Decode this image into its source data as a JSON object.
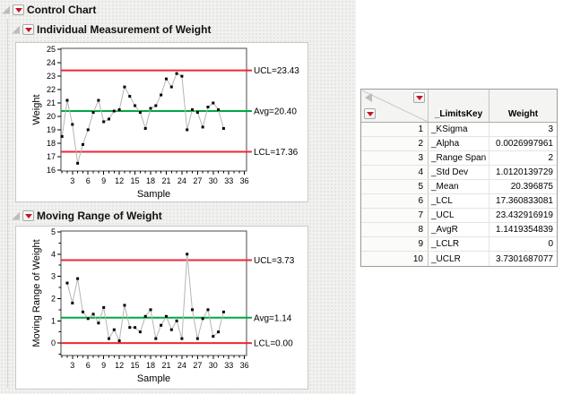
{
  "outline": {
    "control_chart_title": "Control Chart",
    "individual_chart_title": "Individual Measurement of Weight",
    "moving_range_chart_title": "Moving Range of Weight"
  },
  "chart_data": [
    {
      "type": "line",
      "title": "Individual Measurement of Weight",
      "xlabel": "Sample",
      "ylabel": "Weight",
      "xlim": [
        0.8,
        36.4
      ],
      "ylim": [
        15.92,
        25.08
      ],
      "xticks": [
        3,
        6,
        9,
        12,
        15,
        18,
        21,
        24,
        27,
        30,
        33,
        36
      ],
      "x_minor_step": 1,
      "yticks": [
        16,
        17,
        18,
        19,
        20,
        21,
        22,
        23,
        24,
        25
      ],
      "grid": false,
      "legend": "none",
      "x": [
        1,
        2,
        3,
        4,
        5,
        6,
        7,
        8,
        9,
        10,
        11,
        12,
        13,
        14,
        15,
        16,
        17,
        18,
        19,
        20,
        21,
        22,
        23,
        24,
        25,
        26,
        27,
        28,
        29,
        30,
        31,
        32
      ],
      "values": [
        18.5,
        21.2,
        19.4,
        16.5,
        17.9,
        19.0,
        20.3,
        21.2,
        19.6,
        19.8,
        20.4,
        20.5,
        22.2,
        21.5,
        20.8,
        20.3,
        19.1,
        20.6,
        20.8,
        21.6,
        22.8,
        22.2,
        23.2,
        23.0,
        19.0,
        20.5,
        20.3,
        19.2,
        20.7,
        21.0,
        20.5,
        19.1
      ],
      "control_lines": [
        {
          "label": "UCL=23.43",
          "value": 23.432916919,
          "kind": "limit"
        },
        {
          "label": "Avg=20.40",
          "value": 20.396875,
          "kind": "center"
        },
        {
          "label": "LCL=17.36",
          "value": 17.360833081,
          "kind": "limit"
        }
      ]
    },
    {
      "type": "line",
      "title": "Moving Range of Weight",
      "xlabel": "Sample",
      "ylabel": "Moving Range of Weight",
      "xlim": [
        0.8,
        36.4
      ],
      "ylim": [
        -0.56,
        5.04
      ],
      "xticks": [
        3,
        6,
        9,
        12,
        15,
        18,
        21,
        24,
        27,
        30,
        33,
        36
      ],
      "x_minor_step": 1,
      "yticks": [
        0,
        1,
        2,
        3,
        4,
        5
      ],
      "y_minor_step": 0.5,
      "grid": false,
      "legend": "none",
      "x": [
        2,
        3,
        4,
        5,
        6,
        7,
        8,
        9,
        10,
        11,
        12,
        13,
        14,
        15,
        16,
        17,
        18,
        19,
        20,
        21,
        22,
        23,
        24,
        25,
        26,
        27,
        28,
        29,
        30,
        31,
        32
      ],
      "values": [
        2.7,
        1.8,
        2.9,
        1.4,
        1.1,
        1.3,
        0.9,
        1.6,
        0.2,
        0.6,
        0.1,
        1.7,
        0.7,
        0.7,
        0.5,
        1.2,
        1.5,
        0.2,
        0.8,
        1.2,
        0.6,
        1.0,
        0.2,
        4.0,
        1.5,
        0.2,
        1.1,
        1.5,
        0.3,
        0.5,
        1.4
      ],
      "control_lines": [
        {
          "label": "UCL=3.73",
          "value": 3.7301687077,
          "kind": "limit"
        },
        {
          "label": "Avg=1.14",
          "value": 1.1419354839,
          "kind": "center"
        },
        {
          "label": "LCL=0.00",
          "value": 0,
          "kind": "limit"
        }
      ]
    }
  ],
  "table": {
    "columns": [
      "_LimitsKey",
      "Weight"
    ],
    "rows": [
      [
        "1",
        "_KSigma",
        "3"
      ],
      [
        "2",
        "_Alpha",
        "0.0026997961"
      ],
      [
        "3",
        "_Range Span",
        "2"
      ],
      [
        "4",
        "_Std Dev",
        "1.0120139729"
      ],
      [
        "5",
        "_Mean",
        "20.396875"
      ],
      [
        "6",
        "_LCL",
        "17.360833081"
      ],
      [
        "7",
        "_UCL",
        "23.432916919"
      ],
      [
        "8",
        "_AvgR",
        "1.1419354839"
      ],
      [
        "9",
        "_LCLR",
        "0"
      ],
      [
        "10",
        "_UCLR",
        "3.7301687077"
      ]
    ]
  },
  "colors": {
    "limit_line": "#ee2737",
    "center_line": "#00a843",
    "connector": "#b5b5b3",
    "marker": "#000000"
  }
}
